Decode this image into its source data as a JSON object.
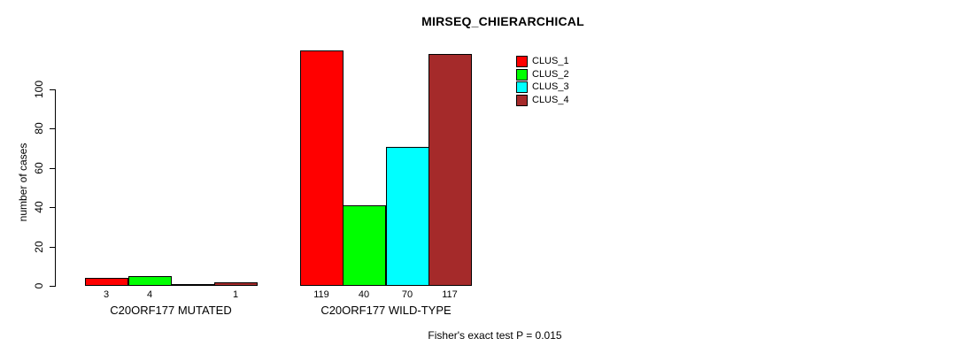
{
  "title": "MIRSEQ_CHIERARCHICAL",
  "footer": "Fisher's exact test P = 0.015",
  "y_axis": {
    "label": "number of cases",
    "ticks": [
      0,
      20,
      40,
      60,
      80,
      100
    ]
  },
  "legend": [
    {
      "label": "CLUS_1",
      "color": "#ff0000"
    },
    {
      "label": "CLUS_2",
      "color": "#00ff00"
    },
    {
      "label": "CLUS_3",
      "color": "#00ffff"
    },
    {
      "label": "CLUS_4",
      "color": "#a52a2a"
    }
  ],
  "chart_data": {
    "type": "bar",
    "title": "MIRSEQ_CHIERARCHICAL",
    "ylabel": "number of cases",
    "ylim": [
      0,
      120
    ],
    "grid": false,
    "legend_position": "top-right-inside",
    "series_names": [
      "CLUS_1",
      "CLUS_2",
      "CLUS_3",
      "CLUS_4"
    ],
    "series_colors": [
      "#ff0000",
      "#00ff00",
      "#00ffff",
      "#a52a2a"
    ],
    "bar_border_color": "#000000",
    "categories": [
      "C20ORF177 MUTATED",
      "C20ORF177 WILD-TYPE"
    ],
    "groups": [
      {
        "label": "C20ORF177 MUTATED",
        "values": [
          3,
          4,
          0,
          1
        ],
        "value_labels": [
          "3",
          "4",
          "",
          "1"
        ]
      },
      {
        "label": "C20ORF177 WILD-TYPE",
        "values": [
          119,
          40,
          70,
          117
        ],
        "value_labels": [
          "119",
          "40",
          "70",
          "117"
        ]
      }
    ],
    "annotation": "Fisher's exact test P = 0.015"
  }
}
